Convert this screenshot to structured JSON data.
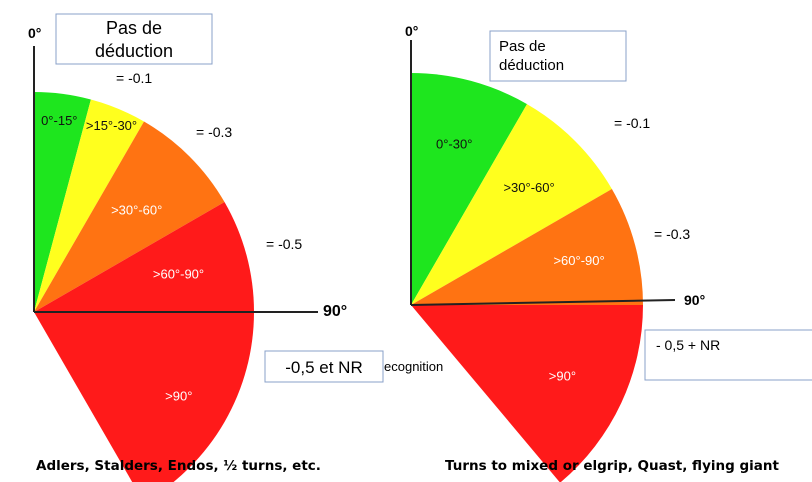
{
  "left_diagram": {
    "axis_zero_label": "0°",
    "axis_ninety_label": "90°",
    "no_deduction_box": "Pas de déduction",
    "no_deduction_box_lines": [
      "Pas de",
      "déduction"
    ],
    "sectors": [
      {
        "label": "0°-15°",
        "start_deg": 0,
        "end_deg": 15,
        "color": "#1ee61e"
      },
      {
        "label": ">15°-30°",
        "start_deg": 15,
        "end_deg": 30,
        "color": "#ffff1e"
      },
      {
        "label": ">30°-60°",
        "start_deg": 30,
        "end_deg": 60,
        "color": "#ff7312"
      },
      {
        "label": ">60°-90°",
        "start_deg": 60,
        "end_deg": 90,
        "color": "#ff1a1a"
      },
      {
        "label": ">90°",
        "start_deg": 90,
        "end_deg": 150,
        "color": "#ff1a1a"
      }
    ],
    "deductions": [
      "= -0.1",
      "= -0.3",
      "= -0.5"
    ],
    "box_label": "-0,5 et NR",
    "partial_text": "ecognition",
    "caption": "Adlers, Stalders, Endos, ½ turns, etc."
  },
  "right_diagram": {
    "axis_zero_label": "0°",
    "axis_ninety_label": "90°",
    "no_deduction_box": "Pas de déduction",
    "no_deduction_box_lines": [
      "Pas de",
      "déduction"
    ],
    "sectors": [
      {
        "label": "0°-30°",
        "start_deg": 0,
        "end_deg": 30,
        "color": "#1ee61e"
      },
      {
        "label": ">30°-60°",
        "start_deg": 30,
        "end_deg": 60,
        "color": "#ffff1e"
      },
      {
        "label": ">60°-90°",
        "start_deg": 60,
        "end_deg": 90,
        "color": "#ff7312"
      },
      {
        "label": ">90°",
        "start_deg": 90,
        "end_deg": 140,
        "color": "#ff1a1a"
      }
    ],
    "deductions": [
      "= -0.1",
      "= -0.3"
    ],
    "box_label": "- 0,5 + NR",
    "caption": "Turns to mixed or elgrip, Quast, flying giant"
  }
}
